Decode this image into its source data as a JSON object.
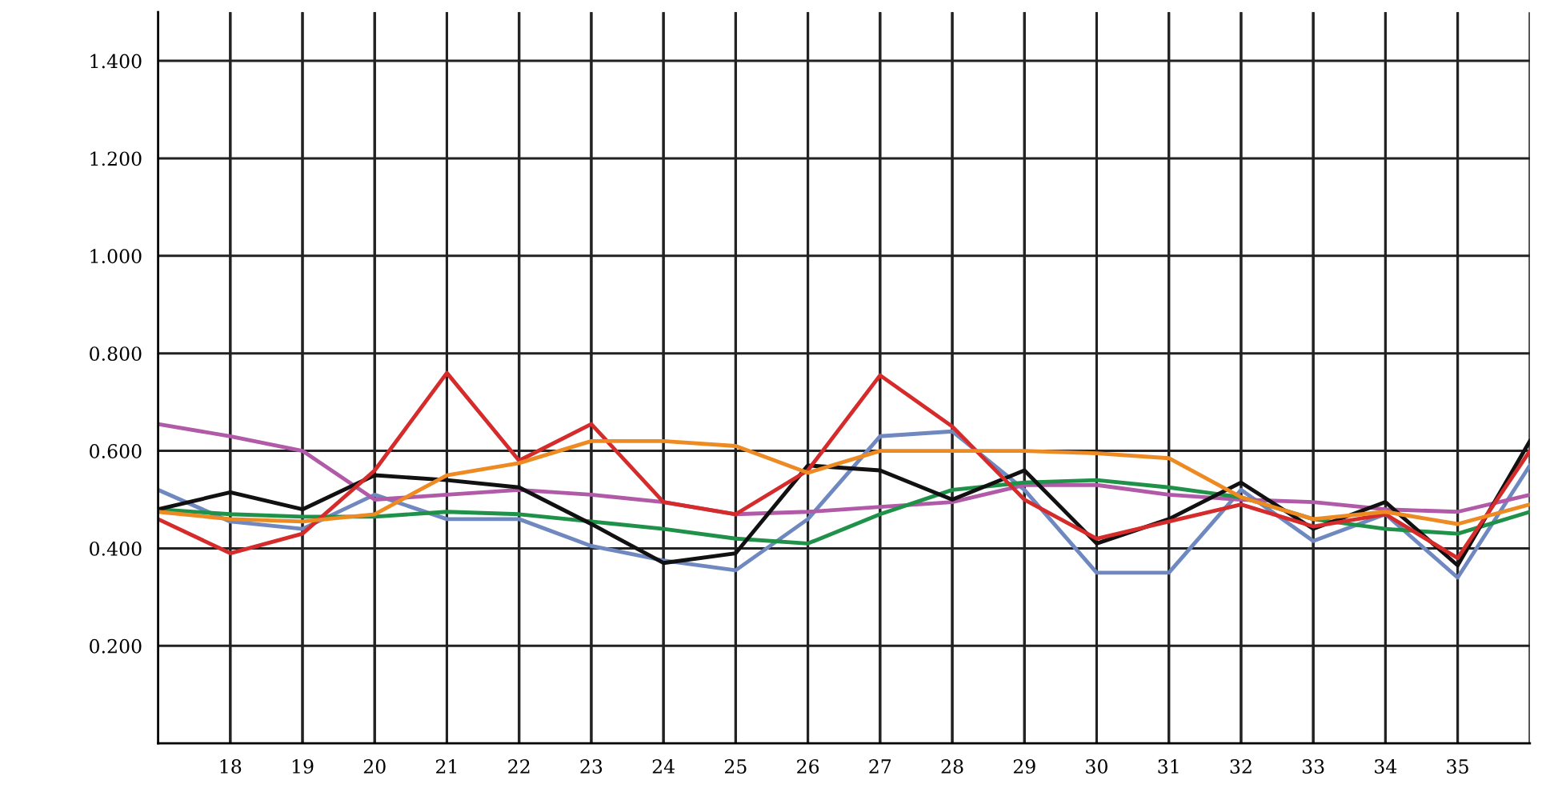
{
  "chart_data": {
    "type": "line",
    "x": [
      17,
      18,
      19,
      20,
      21,
      22,
      23,
      24,
      25,
      26,
      27,
      28,
      29,
      30,
      31,
      32,
      33,
      34,
      35,
      36
    ],
    "series": [
      {
        "color": "#6f88c0",
        "values": [
          0.52,
          0.455,
          0.44,
          0.51,
          0.46,
          0.46,
          0.405,
          0.375,
          0.355,
          0.46,
          0.63,
          0.64,
          0.52,
          0.35,
          0.35,
          0.52,
          0.415,
          0.47,
          0.34,
          0.57
        ]
      },
      {
        "color": "#b05aa8",
        "values": [
          0.655,
          0.63,
          0.6,
          0.5,
          0.51,
          0.52,
          0.51,
          0.495,
          0.47,
          0.475,
          0.485,
          0.495,
          0.53,
          0.53,
          0.51,
          0.5,
          0.495,
          0.48,
          0.475,
          0.51
        ]
      },
      {
        "color": "#1f9148",
        "values": [
          0.48,
          0.47,
          0.465,
          0.465,
          0.475,
          0.47,
          0.455,
          0.44,
          0.42,
          0.41,
          0.47,
          0.52,
          0.535,
          0.54,
          0.525,
          0.505,
          0.46,
          0.44,
          0.43,
          0.475
        ]
      },
      {
        "color": "#111111",
        "values": [
          0.48,
          0.515,
          0.48,
          0.55,
          0.54,
          0.525,
          0.45,
          0.37,
          0.39,
          0.57,
          0.56,
          0.5,
          0.56,
          0.41,
          0.46,
          0.535,
          0.44,
          0.495,
          0.365,
          0.62
        ]
      },
      {
        "color": "#d62b2b",
        "values": [
          0.46,
          0.39,
          0.43,
          0.56,
          0.76,
          0.58,
          0.655,
          0.495,
          0.47,
          0.56,
          0.755,
          0.65,
          0.5,
          0.42,
          0.455,
          0.49,
          0.445,
          0.47,
          0.38,
          0.6
        ]
      },
      {
        "color": "#ee8a22",
        "values": [
          0.475,
          0.46,
          0.455,
          0.47,
          0.55,
          0.575,
          0.62,
          0.62,
          0.61,
          0.555,
          0.6,
          0.6,
          0.6,
          0.595,
          0.585,
          0.505,
          0.46,
          0.475,
          0.45,
          0.49
        ]
      }
    ],
    "xlim": [
      17,
      36
    ],
    "xticks": [
      18,
      19,
      20,
      21,
      22,
      23,
      24,
      25,
      26,
      27,
      28,
      29,
      30,
      31,
      32,
      33,
      34,
      35,
      {
        "value": 36,
        "label": null
      }
    ],
    "ylim": [
      0,
      1.5
    ],
    "yticks": [
      {
        "value": 0.2,
        "label": "0.200"
      },
      {
        "value": 0.4,
        "label": "0.400"
      },
      {
        "value": 0.6,
        "label": "0.600"
      },
      {
        "value": 0.8,
        "label": "0.800"
      },
      {
        "value": 1.0,
        "label": "1.000"
      },
      {
        "value": 1.2,
        "label": "1.200"
      },
      {
        "value": 1.4,
        "label": "1.400"
      }
    ],
    "grid": true,
    "marker": "none",
    "line_style": "solid"
  }
}
